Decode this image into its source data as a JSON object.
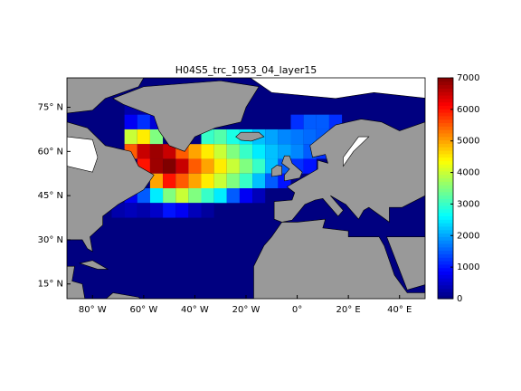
{
  "chart_data": {
    "type": "map-grid",
    "title": "H04S5_trc_1953_04_layer15",
    "xlim": [
      -90,
      50
    ],
    "ylim": [
      10,
      85
    ],
    "xticks": [
      {
        "value": -80,
        "label": "80° W"
      },
      {
        "value": -60,
        "label": "60° W"
      },
      {
        "value": -40,
        "label": "40° W"
      },
      {
        "value": -20,
        "label": "20° W"
      },
      {
        "value": 0,
        "label": "0°"
      },
      {
        "value": 20,
        "label": "20° E"
      },
      {
        "value": 40,
        "label": "40° E"
      }
    ],
    "yticks": [
      {
        "value": 15,
        "label": "15° N"
      },
      {
        "value": 30,
        "label": "30° N"
      },
      {
        "value": 45,
        "label": "45° N"
      },
      {
        "value": 60,
        "label": "60° N"
      },
      {
        "value": 75,
        "label": "75° N"
      }
    ],
    "clim": [
      0,
      7000
    ],
    "cticks": [
      0,
      1000,
      2000,
      3000,
      4000,
      5000,
      6000,
      7000
    ],
    "colormap": "jet",
    "grid": {
      "lon": [
        -70,
        -65,
        -60,
        -55,
        -50,
        -45,
        -40,
        -35,
        -30,
        -25,
        -20,
        -15,
        -10,
        -5,
        0,
        5,
        10,
        15,
        20,
        25
      ],
      "lat": [
        75,
        70,
        65,
        60,
        55,
        50,
        45,
        40
      ],
      "values": [
        [
          0,
          300,
          300,
          0,
          0,
          0,
          0,
          0,
          0,
          0,
          0,
          0,
          0,
          0,
          0,
          0,
          0,
          0,
          0,
          0
        ],
        [
          0,
          800,
          1200,
          600,
          0,
          0,
          0,
          0,
          0,
          0,
          0,
          0,
          0,
          0,
          1200,
          1500,
          1500,
          1200,
          0,
          0
        ],
        [
          0,
          4000,
          4500,
          3500,
          0,
          0,
          0,
          3000,
          3200,
          2800,
          2500,
          2200,
          2000,
          1800,
          1700,
          1600,
          1500,
          0,
          0,
          0
        ],
        [
          0,
          5500,
          6500,
          6800,
          6500,
          5500,
          5000,
          4500,
          4000,
          3500,
          3000,
          2500,
          2200,
          2000,
          1800,
          1500,
          1200,
          0,
          1000,
          0
        ],
        [
          0,
          0,
          6000,
          6800,
          7000,
          6500,
          5500,
          5000,
          4500,
          4000,
          3500,
          3000,
          2200,
          1500,
          1200,
          1000,
          0,
          800,
          600,
          0
        ],
        [
          0,
          0,
          0,
          5000,
          6000,
          5500,
          5000,
          4500,
          4000,
          3500,
          3000,
          2200,
          1500,
          1000,
          0,
          0,
          0,
          0,
          0,
          0
        ],
        [
          0,
          800,
          1500,
          2500,
          3500,
          4000,
          3500,
          3000,
          2500,
          1500,
          800,
          400,
          0,
          0,
          0,
          0,
          0,
          0,
          0,
          0
        ],
        [
          300,
          400,
          300,
          500,
          1000,
          800,
          400,
          200,
          0,
          0,
          0,
          0,
          0,
          0,
          0,
          0,
          0,
          0,
          0,
          0
        ]
      ]
    }
  }
}
